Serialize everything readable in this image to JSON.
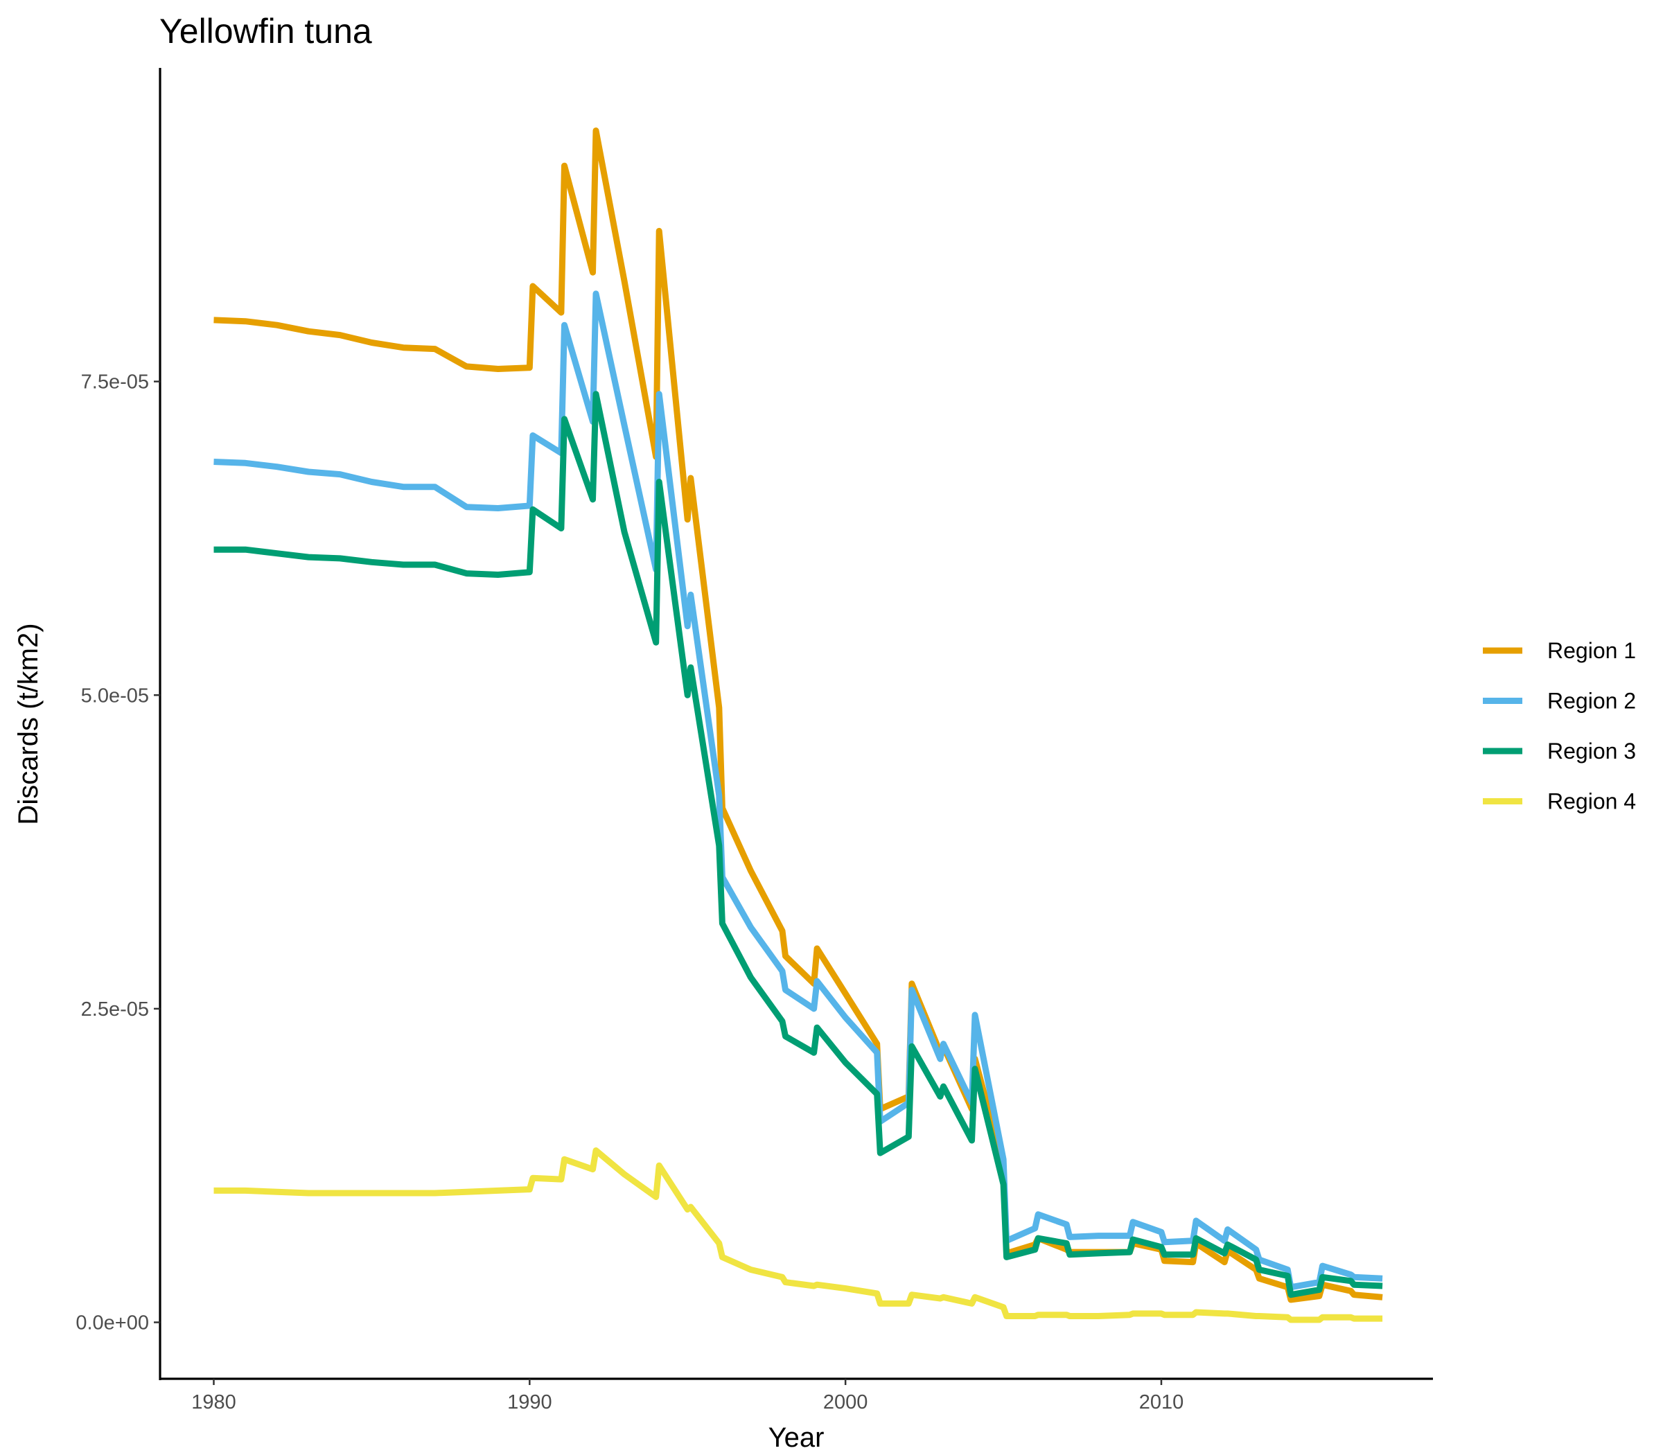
{
  "chart_data": {
    "type": "line",
    "title": "Yellowfin tuna",
    "xlabel": "Year",
    "ylabel": "Discards (t/km2)",
    "xlim": [
      1978.3,
      2018.6
    ],
    "ylim": [
      -4.5e-06,
      0.0001
    ],
    "x_ticks": [
      1980,
      1990,
      2000,
      2010
    ],
    "x_tick_labels": [
      "1980",
      "1990",
      "2000",
      "2010"
    ],
    "y_ticks": [
      0,
      2.5e-05,
      5e-05,
      7.5e-05
    ],
    "y_tick_labels": [
      "0.0e+00",
      "2.5e-05",
      "5.0e-05",
      "7.5e-05"
    ],
    "grid": false,
    "legend_position": "right",
    "series": [
      {
        "name": "Region 1",
        "color": "#E69F00",
        "x": [
          1980,
          1981,
          1982,
          1983,
          1984,
          1985,
          1986,
          1987,
          1988,
          1989,
          1990,
          1990.1,
          1991,
          1991.1,
          1992,
          1992.1,
          1993,
          1994,
          1994.1,
          1995,
          1995.1,
          1996,
          1996.1,
          1997,
          1998,
          1998.1,
          1999,
          1999.1,
          2000,
          2001,
          2001.1,
          2002,
          2002.1,
          2003,
          2003.1,
          2004,
          2004.1,
          2005,
          2005.1,
          2006,
          2006.1,
          2007,
          2007.1,
          2008,
          2009,
          2009.1,
          2010,
          2010.1,
          2011,
          2011.1,
          2012,
          2012.1,
          2013,
          2013.1,
          2014,
          2014.1,
          2015,
          2015.1,
          2016,
          2016.1,
          2017
        ],
        "values": [
          7.99e-05,
          7.98e-05,
          7.95e-05,
          7.9e-05,
          7.87e-05,
          7.81e-05,
          7.77e-05,
          7.76e-05,
          7.62e-05,
          7.6e-05,
          7.61e-05,
          8.26e-05,
          8.05e-05,
          9.22e-05,
          8.37e-05,
          9.5e-05,
          8.3e-05,
          6.9e-05,
          8.7e-05,
          6.4e-05,
          6.73e-05,
          4.9e-05,
          4.1e-05,
          3.6e-05,
          3.12e-05,
          2.92e-05,
          2.7e-05,
          2.98e-05,
          2.62e-05,
          2.22e-05,
          1.7e-05,
          1.8e-05,
          2.7e-05,
          2.15e-05,
          2.2e-05,
          1.7e-05,
          2.1e-05,
          1.25e-05,
          5.5e-06,
          6.2e-06,
          6.7e-06,
          5.8e-06,
          5.6e-06,
          5.6e-06,
          5.6e-06,
          6.3e-06,
          5.8e-06,
          4.9e-06,
          4.8e-06,
          6.3e-06,
          4.8e-06,
          5.7e-06,
          4.2e-06,
          3.5e-06,
          2.8e-06,
          1.8e-06,
          2.1e-06,
          3e-06,
          2.5e-06,
          2.2e-06,
          2e-06
        ]
      },
      {
        "name": "Region 2",
        "color": "#56B4E9",
        "x": [
          1980,
          1981,
          1982,
          1983,
          1984,
          1985,
          1986,
          1987,
          1988,
          1989,
          1990,
          1990.1,
          1991,
          1991.1,
          1992,
          1992.1,
          1993,
          1994,
          1994.1,
          1995,
          1995.1,
          1996,
          1996.1,
          1997,
          1998,
          1998.1,
          1999,
          1999.1,
          2000,
          2001,
          2001.1,
          2002,
          2002.1,
          2003,
          2003.1,
          2004,
          2004.1,
          2005,
          2005.1,
          2006,
          2006.1,
          2007,
          2007.1,
          2008,
          2009,
          2009.1,
          2010,
          2010.1,
          2011,
          2011.1,
          2012,
          2012.1,
          2013,
          2013.1,
          2014,
          2014.1,
          2015,
          2015.1,
          2016,
          2016.1,
          2017
        ],
        "values": [
          6.86e-05,
          6.85e-05,
          6.82e-05,
          6.78e-05,
          6.76e-05,
          6.7e-05,
          6.66e-05,
          6.66e-05,
          6.5e-05,
          6.49e-05,
          6.51e-05,
          7.07e-05,
          6.93e-05,
          7.95e-05,
          7.18e-05,
          8.2e-05,
          7.15e-05,
          6e-05,
          7.4e-05,
          5.55e-05,
          5.8e-05,
          4.2e-05,
          3.55e-05,
          3.15e-05,
          2.8e-05,
          2.65e-05,
          2.5e-05,
          2.72e-05,
          2.43e-05,
          2.15e-05,
          1.6e-05,
          1.75e-05,
          2.65e-05,
          2.1e-05,
          2.22e-05,
          1.75e-05,
          2.45e-05,
          1.3e-05,
          6.5e-06,
          7.5e-06,
          8.6e-06,
          7.8e-06,
          6.8e-06,
          6.9e-06,
          6.9e-06,
          8e-06,
          7.2e-06,
          6.4e-06,
          6.5e-06,
          8.1e-06,
          6.5e-06,
          7.4e-06,
          5.8e-06,
          5e-06,
          4.2e-06,
          2.8e-06,
          3.2e-06,
          4.5e-06,
          3.8e-06,
          3.6e-06,
          3.5e-06
        ]
      },
      {
        "name": "Region 3",
        "color": "#009E73",
        "x": [
          1980,
          1981,
          1982,
          1983,
          1984,
          1985,
          1986,
          1987,
          1988,
          1989,
          1990,
          1990.1,
          1991,
          1991.1,
          1992,
          1992.1,
          1993,
          1994,
          1994.1,
          1995,
          1995.1,
          1996,
          1996.1,
          1997,
          1998,
          1998.1,
          1999,
          1999.1,
          2000,
          2001,
          2001.1,
          2002,
          2002.1,
          2003,
          2003.1,
          2004,
          2004.1,
          2005,
          2005.1,
          2006,
          2006.1,
          2007,
          2007.1,
          2008,
          2009,
          2009.1,
          2010,
          2010.1,
          2011,
          2011.1,
          2012,
          2012.1,
          2013,
          2013.1,
          2014,
          2014.1,
          2015,
          2015.1,
          2016,
          2016.1,
          2017
        ],
        "values": [
          6.16e-05,
          6.16e-05,
          6.13e-05,
          6.1e-05,
          6.09e-05,
          6.06e-05,
          6.04e-05,
          6.04e-05,
          5.97e-05,
          5.96e-05,
          5.98e-05,
          6.48e-05,
          6.33e-05,
          7.2e-05,
          6.56e-05,
          7.4e-05,
          6.3e-05,
          5.42e-05,
          6.7e-05,
          5e-05,
          5.22e-05,
          3.8e-05,
          3.18e-05,
          2.75e-05,
          2.4e-05,
          2.28e-05,
          2.15e-05,
          2.35e-05,
          2.07e-05,
          1.82e-05,
          1.35e-05,
          1.48e-05,
          2.2e-05,
          1.8e-05,
          1.88e-05,
          1.45e-05,
          2.02e-05,
          1.1e-05,
          5.2e-06,
          5.8e-06,
          6.7e-06,
          6.3e-06,
          5.4e-06,
          5.5e-06,
          5.6e-06,
          6.6e-06,
          6e-06,
          5.4e-06,
          5.4e-06,
          6.7e-06,
          5.5e-06,
          6.2e-06,
          5e-06,
          4.2e-06,
          3.7e-06,
          2.2e-06,
          2.6e-06,
          3.6e-06,
          3.3e-06,
          3e-06,
          2.9e-06
        ]
      },
      {
        "name": "Region 4",
        "color": "#F0E442",
        "x": [
          1980,
          1981,
          1982,
          1983,
          1984,
          1985,
          1986,
          1987,
          1988,
          1989,
          1990,
          1990.1,
          1991,
          1991.1,
          1992,
          1992.1,
          1993,
          1994,
          1994.1,
          1995,
          1995.1,
          1996,
          1996.1,
          1997,
          1998,
          1998.1,
          1999,
          1999.1,
          2000,
          2001,
          2001.1,
          2002,
          2002.1,
          2003,
          2003.1,
          2004,
          2004.1,
          2005,
          2005.1,
          2006,
          2006.1,
          2007,
          2007.1,
          2008,
          2009,
          2009.1,
          2010,
          2010.1,
          2011,
          2011.1,
          2012,
          2012.1,
          2013,
          2013.1,
          2014,
          2014.1,
          2015,
          2015.1,
          2016,
          2016.1,
          2017
        ],
        "values": [
          1.05e-05,
          1.05e-05,
          1.04e-05,
          1.03e-05,
          1.03e-05,
          1.03e-05,
          1.03e-05,
          1.03e-05,
          1.04e-05,
          1.05e-05,
          1.06e-05,
          1.15e-05,
          1.14e-05,
          1.3e-05,
          1.22e-05,
          1.37e-05,
          1.18e-05,
          1e-05,
          1.25e-05,
          9e-06,
          9.2e-06,
          6.3e-06,
          5.2e-06,
          4.2e-06,
          3.6e-06,
          3.2e-06,
          2.9e-06,
          3e-06,
          2.7e-06,
          2.3e-06,
          1.5e-06,
          1.5e-06,
          2.2e-06,
          1.9e-06,
          2e-06,
          1.5e-06,
          2e-06,
          1.2e-06,
          5e-07,
          5e-07,
          6e-07,
          6e-07,
          5e-07,
          5e-07,
          6e-07,
          7e-07,
          7e-07,
          6e-07,
          6e-07,
          8e-07,
          7e-07,
          7e-07,
          5e-07,
          5e-07,
          4e-07,
          2e-07,
          2e-07,
          4e-07,
          4e-07,
          3e-07,
          3e-07
        ]
      }
    ]
  }
}
